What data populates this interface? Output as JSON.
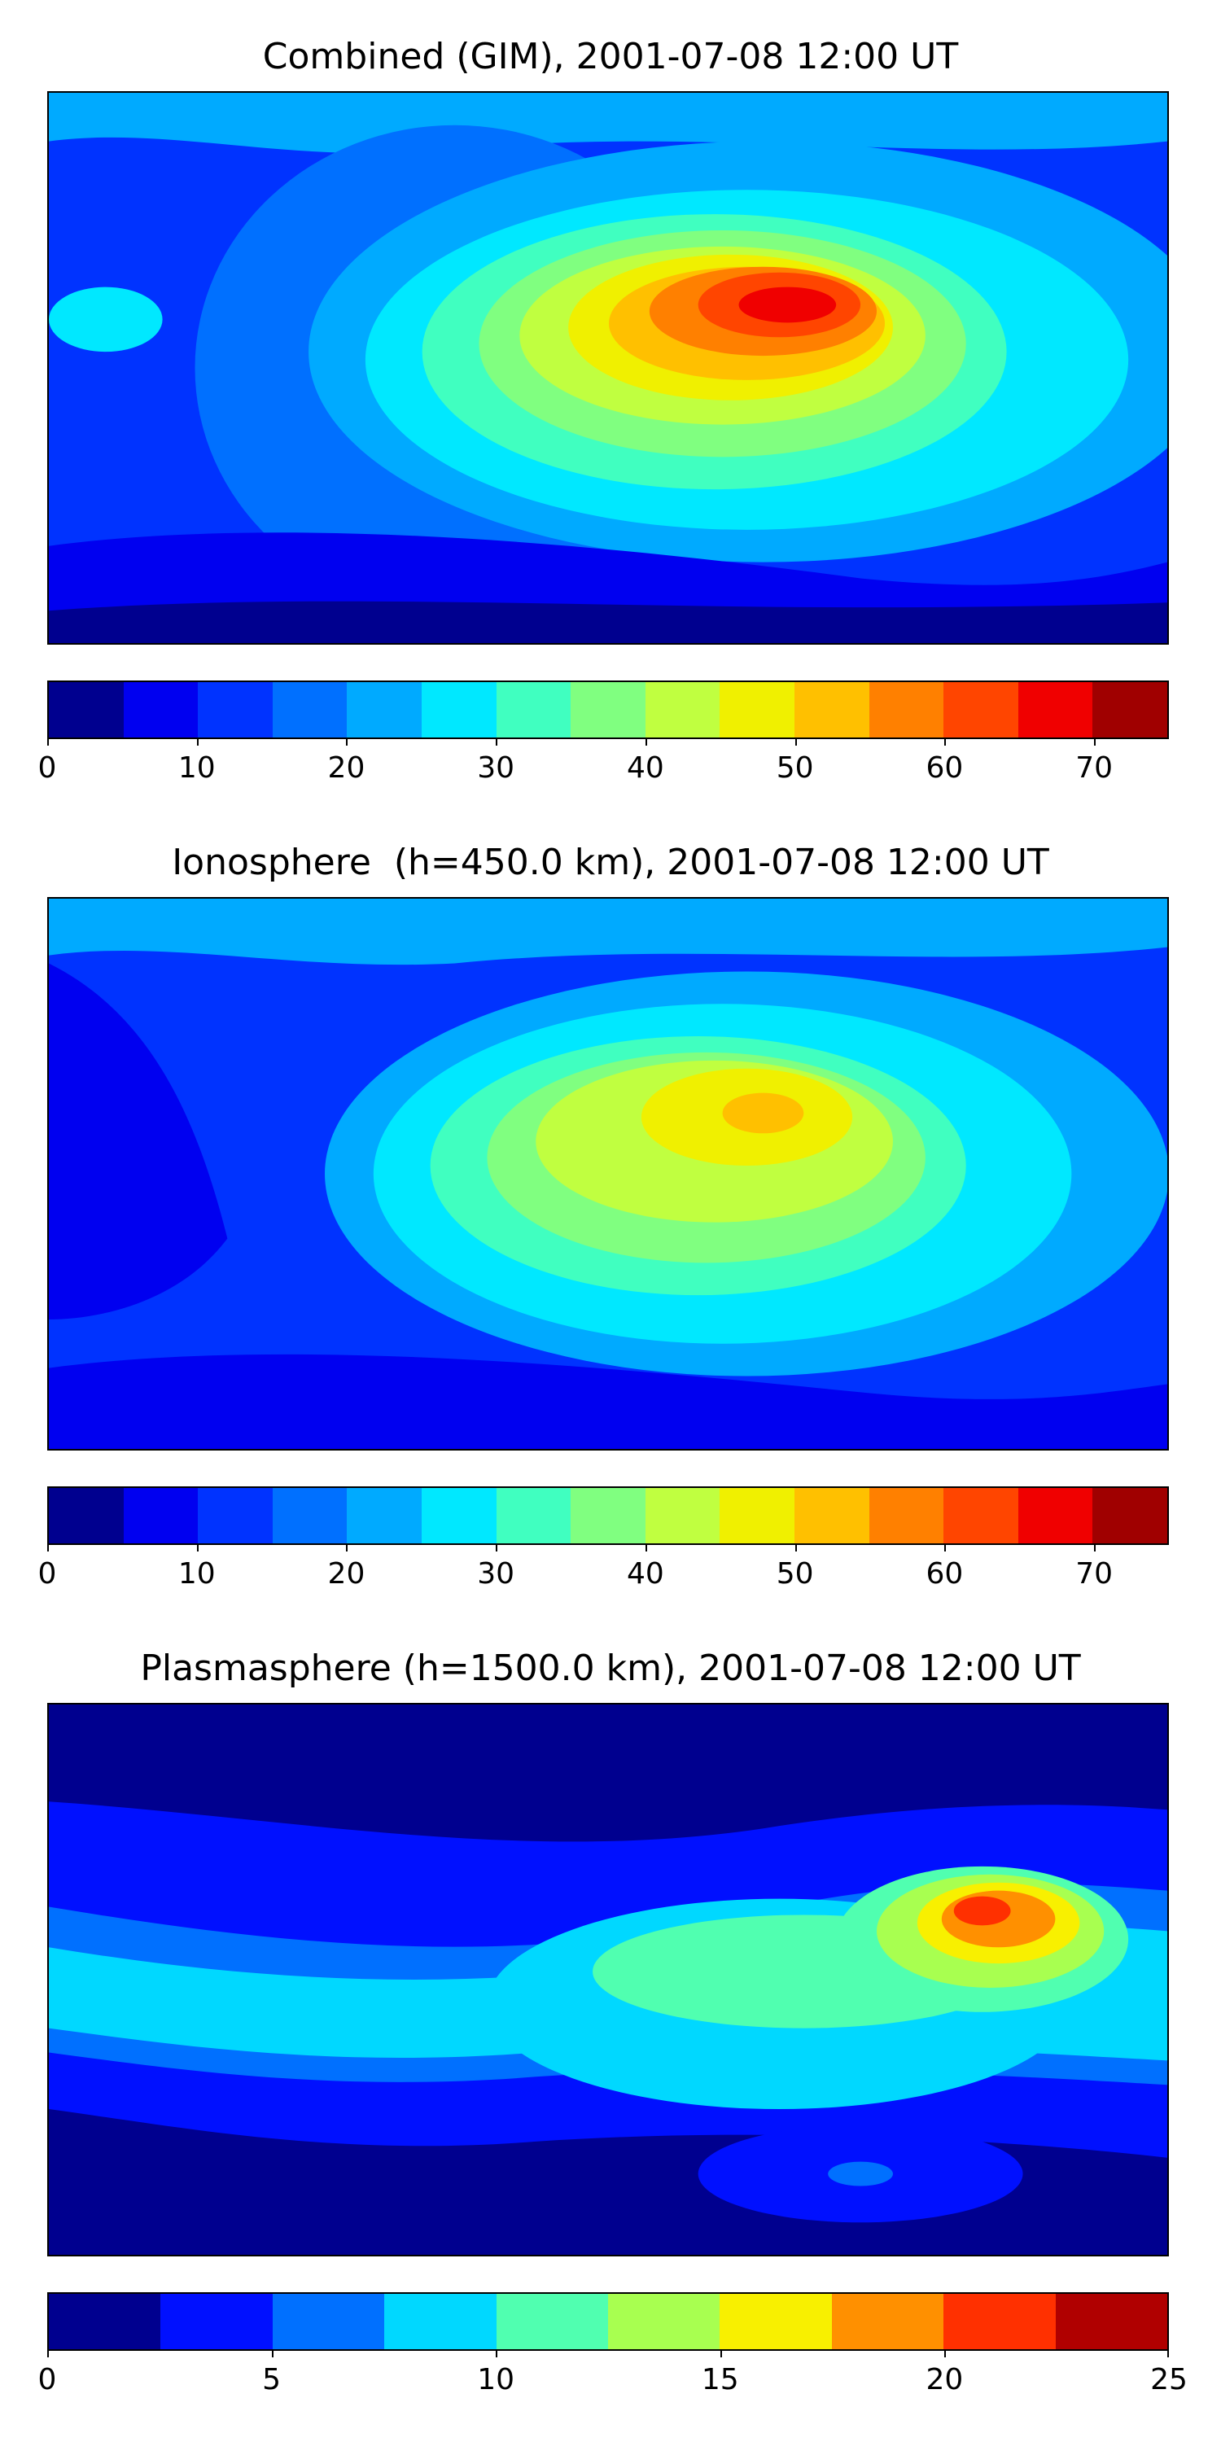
{
  "panels": [
    {
      "title": "Combined (GIM), 2001-07-08 12:00 UT",
      "colorbar": {
        "min": 0,
        "max": 75,
        "colors": [
          "#00008f",
          "#0000f0",
          "#0033ff",
          "#0070ff",
          "#00aaff",
          "#00e8ff",
          "#40ffc0",
          "#80ff80",
          "#c0ff40",
          "#f0f000",
          "#ffc000",
          "#ff8000",
          "#ff4500",
          "#f00000",
          "#a00000"
        ],
        "ticks": [
          "0",
          "10",
          "20",
          "30",
          "40",
          "50",
          "60",
          "70"
        ]
      }
    },
    {
      "title": "Ionosphere  (h=450.0 km), 2001-07-08 12:00 UT",
      "colorbar": {
        "min": 0,
        "max": 75,
        "colors": [
          "#00008f",
          "#0000f0",
          "#0033ff",
          "#0070ff",
          "#00aaff",
          "#00e8ff",
          "#40ffc0",
          "#80ff80",
          "#c0ff40",
          "#f0f000",
          "#ffc000",
          "#ff8000",
          "#ff4500",
          "#f00000",
          "#a00000"
        ],
        "ticks": [
          "0",
          "10",
          "20",
          "30",
          "40",
          "50",
          "60",
          "70"
        ]
      }
    },
    {
      "title": "Plasmasphere (h=1500.0 km), 2001-07-08 12:00 UT",
      "colorbar": {
        "min": 0,
        "max": 25,
        "colors": [
          "#00008f",
          "#0010ff",
          "#0070ff",
          "#00d8ff",
          "#50ffb0",
          "#a8ff50",
          "#f8f000",
          "#ff9000",
          "#ff3000",
          "#b00000"
        ],
        "ticks": [
          "0",
          "5",
          "10",
          "15",
          "20",
          "25"
        ]
      }
    }
  ]
}
